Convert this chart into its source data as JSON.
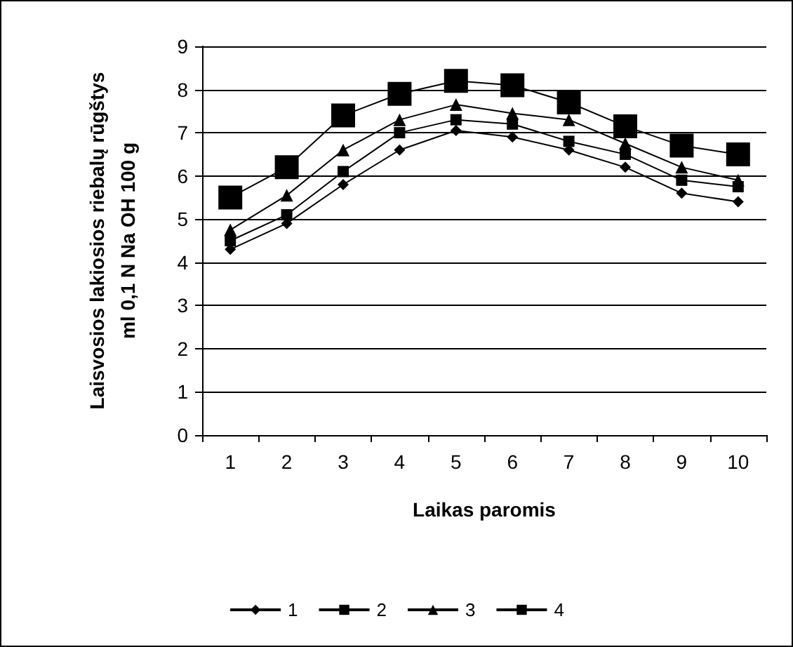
{
  "chart_data": {
    "type": "line",
    "xlabel": "Laikas paromis",
    "ylabel": "Laisvosios lakiosios riebalų rūgštys\nml 0,1 N Na OH 100 g",
    "categories": [
      "1",
      "2",
      "3",
      "4",
      "5",
      "6",
      "7",
      "8",
      "9",
      "10"
    ],
    "series": [
      {
        "name": "1",
        "color": "#000000",
        "marker": "diamond",
        "values": [
          4.3,
          4.9,
          5.8,
          6.6,
          7.05,
          6.9,
          6.6,
          6.2,
          5.6,
          5.4
        ]
      },
      {
        "name": "2",
        "color": "#000000",
        "marker": "square",
        "values": [
          4.5,
          5.1,
          6.1,
          7.0,
          7.3,
          7.2,
          6.8,
          6.5,
          5.9,
          5.75
        ]
      },
      {
        "name": "3",
        "color": "#000000",
        "marker": "triangle",
        "values": [
          4.75,
          5.55,
          6.6,
          7.3,
          7.65,
          7.45,
          7.3,
          6.75,
          6.2,
          5.9
        ]
      },
      {
        "name": "4",
        "color": "#000000",
        "marker": "square",
        "values": [
          5.5,
          6.2,
          7.4,
          7.9,
          8.2,
          8.1,
          7.7,
          7.15,
          6.7,
          6.5
        ]
      }
    ],
    "ylim": [
      0,
      9
    ],
    "yticks": [
      0,
      1,
      2,
      3,
      4,
      5,
      6,
      7,
      8,
      9
    ],
    "grid": "y",
    "legend": "bottom"
  }
}
